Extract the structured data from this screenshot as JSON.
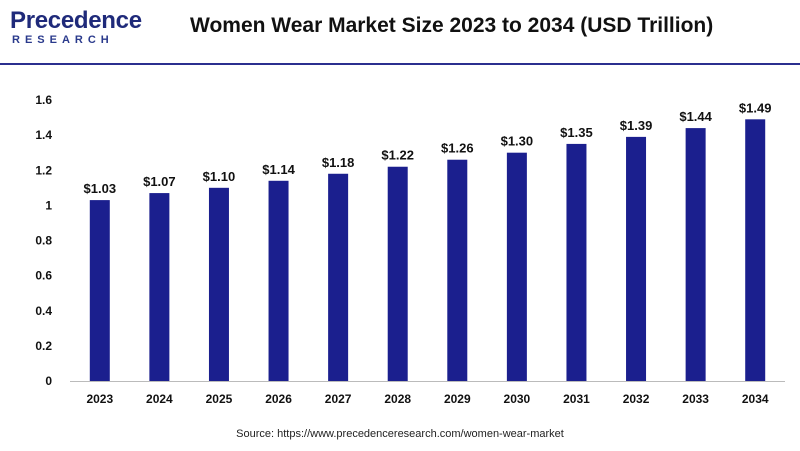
{
  "header": {
    "logo_word": "Precedence",
    "logo_sub": "RESEARCH",
    "title": "Women Wear Market Size 2023 to 2034 (USD Trillion)"
  },
  "footer": {
    "source": "Source: https://www.precedenceresearch.com/women-wear-market"
  },
  "colors": {
    "bar": "#1b1f8e",
    "rule": "#2b2f8f",
    "logo": "#1f2a7a"
  },
  "chart_data": {
    "type": "bar",
    "title": "Women Wear Market Size 2023 to 2034 (USD Trillion)",
    "xlabel": "",
    "ylabel": "",
    "categories": [
      "2023",
      "2024",
      "2025",
      "2026",
      "2027",
      "2028",
      "2029",
      "2030",
      "2031",
      "2032",
      "2033",
      "2034"
    ],
    "values": [
      1.03,
      1.07,
      1.1,
      1.14,
      1.18,
      1.22,
      1.26,
      1.3,
      1.35,
      1.39,
      1.44,
      1.49
    ],
    "data_labels": [
      "$1.03",
      "$1.07",
      "$1.10",
      "$1.14",
      "$1.18",
      "$1.22",
      "$1.26",
      "$1.30",
      "$1.35",
      "$1.39",
      "$1.44",
      "$1.49"
    ],
    "yticks": [
      "0",
      "0.2",
      "0.4",
      "0.6",
      "0.8",
      "1",
      "1.2",
      "1.4",
      "1.6"
    ],
    "ylim": [
      0,
      1.6
    ],
    "grid": false,
    "legend": "none"
  }
}
